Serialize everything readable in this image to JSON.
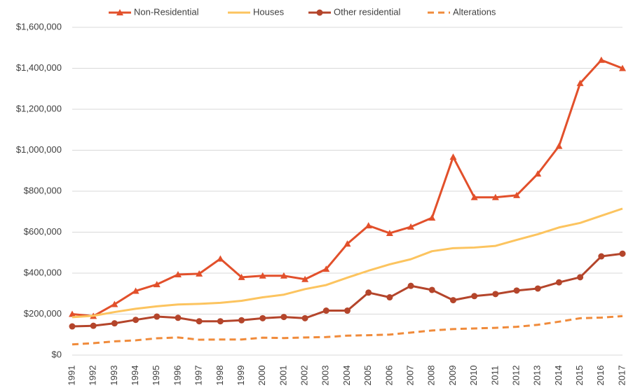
{
  "chart_data": {
    "type": "line",
    "categories": [
      "1991",
      "1992",
      "1993",
      "1994",
      "1995",
      "1996",
      "1997",
      "1998",
      "1999",
      "2000",
      "2001",
      "2002",
      "2003",
      "2004",
      "2005",
      "2006",
      "2007",
      "2008",
      "2009",
      "2010",
      "2011",
      "2012",
      "2013",
      "2014",
      "2015",
      "2016",
      "2017"
    ],
    "series": [
      {
        "name": "Non-Residential",
        "color": "#e2502b",
        "marker": "triangle",
        "line_style": "solid",
        "values": [
          200000,
          190000,
          248000,
          313000,
          345000,
          393000,
          397000,
          470000,
          380000,
          387000,
          387000,
          370000,
          420000,
          543000,
          632000,
          595000,
          626000,
          670000,
          967000,
          770000,
          770000,
          780000,
          885000,
          1020000,
          1327000,
          1440000,
          1400000
        ]
      },
      {
        "name": "Houses",
        "color": "#fcc45f",
        "marker": "none",
        "line_style": "solid",
        "values": [
          185000,
          192000,
          210000,
          226000,
          238000,
          247000,
          250000,
          255000,
          265000,
          282000,
          295000,
          322000,
          342000,
          378000,
          412000,
          443000,
          468000,
          507000,
          522000,
          525000,
          533000,
          562000,
          590000,
          623000,
          645000,
          680000,
          715000
        ]
      },
      {
        "name": "Other residential",
        "color": "#b4452b",
        "marker": "circle",
        "line_style": "solid",
        "values": [
          140000,
          143000,
          155000,
          172000,
          188000,
          182000,
          165000,
          165000,
          170000,
          180000,
          186000,
          180000,
          217000,
          217000,
          305000,
          282000,
          338000,
          318000,
          268000,
          288000,
          298000,
          315000,
          325000,
          355000,
          380000,
          482000,
          495000
        ]
      },
      {
        "name": "Alterations",
        "color": "#f08b3b",
        "marker": "none",
        "line_style": "dashed",
        "values": [
          52000,
          58000,
          67000,
          72000,
          82000,
          86000,
          75000,
          76000,
          76000,
          85000,
          83000,
          86000,
          88000,
          95000,
          97000,
          100000,
          110000,
          120000,
          127000,
          130000,
          133000,
          138000,
          148000,
          163000,
          180000,
          183000,
          190000
        ]
      }
    ],
    "ylim": [
      0,
      1600000
    ],
    "yticks": [
      {
        "value": 0,
        "label": "$0"
      },
      {
        "value": 200000,
        "label": "$200,000"
      },
      {
        "value": 400000,
        "label": "$400,000"
      },
      {
        "value": 600000,
        "label": "$600,000"
      },
      {
        "value": 800000,
        "label": "$800,000"
      },
      {
        "value": 1000000,
        "label": "$1,000,000"
      },
      {
        "value": 1200000,
        "label": "$1,200,000"
      },
      {
        "value": 1400000,
        "label": "$1,400,000"
      },
      {
        "value": 1600000,
        "label": "$1,600,000"
      }
    ],
    "grid": true,
    "legend": "top"
  }
}
